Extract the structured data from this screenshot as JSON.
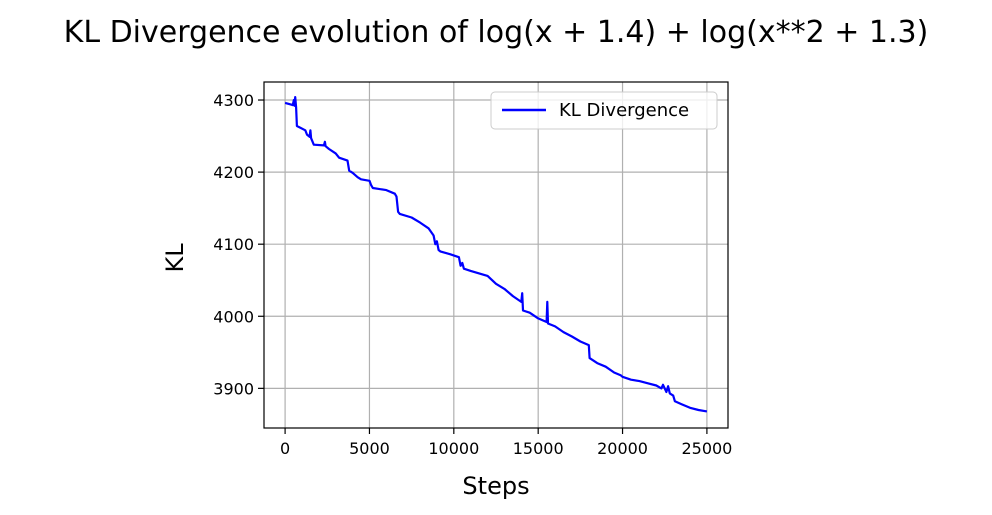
{
  "chart_data": {
    "type": "line",
    "title": "KL Divergence evolution of log(x + 1.4) + log(x**2 + 1.3)",
    "xlabel": "Steps",
    "ylabel": "KL",
    "xlim": [
      -1250,
      26250
    ],
    "ylim": [
      3845,
      4325
    ],
    "xticks": [
      0,
      5000,
      10000,
      15000,
      20000,
      25000
    ],
    "yticks": [
      3900,
      4000,
      4100,
      4200,
      4300
    ],
    "grid": true,
    "legend_position": "top-right",
    "series": [
      {
        "name": "KL Divergence",
        "color": "#0000ff",
        "x": [
          0,
          300,
          450,
          520,
          560,
          600,
          650,
          700,
          1200,
          1300,
          1450,
          1500,
          1540,
          1700,
          2300,
          2360,
          2400,
          2600,
          3000,
          3200,
          3700,
          3800,
          4000,
          4300,
          4500,
          5000,
          5100,
          5200,
          6000,
          6500,
          6600,
          6700,
          6800,
          7500,
          8000,
          8500,
          8800,
          8900,
          9000,
          9100,
          9200,
          9800,
          10300,
          10400,
          10500,
          10600,
          11000,
          12000,
          12500,
          13000,
          13500,
          14000,
          14050,
          14100,
          14500,
          15000,
          15500,
          15540,
          15580,
          16000,
          16500,
          17000,
          17500,
          18000,
          18050,
          18500,
          19000,
          19500,
          19900,
          20000,
          20500,
          21000,
          21500,
          22000,
          22300,
          22400,
          22600,
          22700,
          22800,
          23000,
          23100,
          23500,
          24000,
          24500,
          25000
        ],
        "y": [
          4296,
          4294,
          4293,
          4300,
          4292,
          4304,
          4290,
          4264,
          4258,
          4252,
          4249,
          4258,
          4247,
          4238,
          4237,
          4242,
          4236,
          4232,
          4226,
          4220,
          4216,
          4202,
          4199,
          4193,
          4190,
          4188,
          4182,
          4178,
          4175,
          4170,
          4166,
          4145,
          4142,
          4137,
          4130,
          4122,
          4112,
          4100,
          4104,
          4092,
          4090,
          4086,
          4082,
          4070,
          4074,
          4066,
          4063,
          4056,
          4045,
          4038,
          4028,
          4020,
          4032,
          4008,
          4005,
          3997,
          3992,
          4020,
          3990,
          3986,
          3978,
          3972,
          3965,
          3960,
          3942,
          3935,
          3930,
          3922,
          3918,
          3916,
          3912,
          3910,
          3907,
          3904,
          3900,
          3905,
          3895,
          3903,
          3893,
          3890,
          3882,
          3878,
          3873,
          3870,
          3868
        ]
      }
    ]
  }
}
